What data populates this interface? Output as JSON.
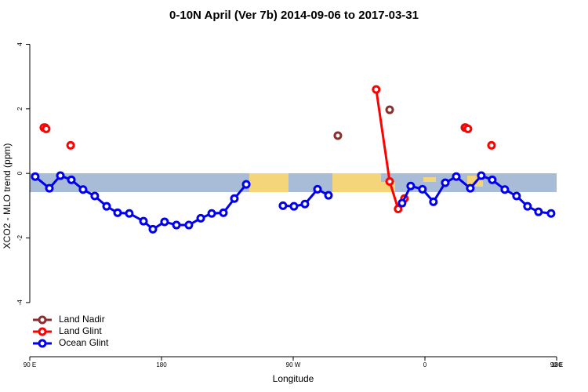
{
  "chart_data": {
    "type": "line",
    "title": "0-10N April (Ver 7b)   2014-09-06 to 2017-03-31",
    "x_label": "Longitude",
    "y_label": "XCO2 - MLO trend (ppm)",
    "xlim": [
      90,
      450
    ],
    "ylim": [
      -5.8,
      4.4
    ],
    "xticks": [
      {
        "value": 90,
        "label": "90 E"
      },
      180,
      {
        "value": 270,
        "label": "90 W"
      },
      {
        "value": 360,
        "label": "0"
      },
      {
        "value": 450,
        "label": "90 E"
      },
      {
        "value": 540,
        "label": "180"
      }
    ],
    "yticks": [
      -4,
      -2,
      0,
      2,
      4
    ],
    "legend": "bottom-left",
    "series": [
      {
        "name": "Land Nadir",
        "color": "#8b2e2e",
        "x": [
          100.5,
          null,
          300.5,
          null,
          335.9,
          null,
          387.3
        ],
        "values": [
          1.42,
          null,
          1.17,
          null,
          1.97,
          null,
          1.42
        ]
      },
      {
        "name": "Land Glint",
        "color": "#ff0000",
        "x": [
          99.6,
          101.2,
          null,
          117.9,
          null,
          326.7,
          335.9,
          341.7,
          346,
          null,
          387.8,
          389.4,
          null,
          405.5
        ],
        "values": [
          1.42,
          1.38,
          null,
          0.87,
          null,
          2.6,
          -0.25,
          -1.1,
          -0.78,
          null,
          1.42,
          1.38,
          null,
          0.87
        ]
      },
      {
        "name": "Ocean Glint",
        "color": "#0000ee",
        "x": [
          93.7,
          103.4,
          110.9,
          118.4,
          126.4,
          134.4,
          142.5,
          150,
          158,
          167.7,
          174.1,
          182.1,
          190.2,
          198.7,
          206.8,
          214.3,
          222.3,
          229.8,
          237.9,
          null,
          263,
          270.5,
          278,
          286.6,
          294.1,
          null,
          344.4,
          350.3,
          358.3,
          365.8,
          373.9,
          381.4,
          391,
          398.5,
          406,
          414.6,
          422.6,
          430.1,
          437.6,
          446.2
        ],
        "values": [
          -0.1,
          -0.46,
          -0.07,
          -0.2,
          -0.5,
          -0.7,
          -1.02,
          -1.22,
          -1.24,
          -1.48,
          -1.73,
          -1.5,
          -1.6,
          -1.6,
          -1.39,
          -1.24,
          -1.22,
          -0.78,
          -0.34,
          null,
          -1.0,
          -1.02,
          -0.95,
          -0.49,
          -0.68,
          null,
          -0.92,
          -0.39,
          -0.49,
          -0.88,
          -0.29,
          -0.1,
          -0.46,
          -0.07,
          -0.2,
          -0.5,
          -0.7,
          -1.02,
          -1.19,
          -1.24
        ]
      }
    ]
  }
}
